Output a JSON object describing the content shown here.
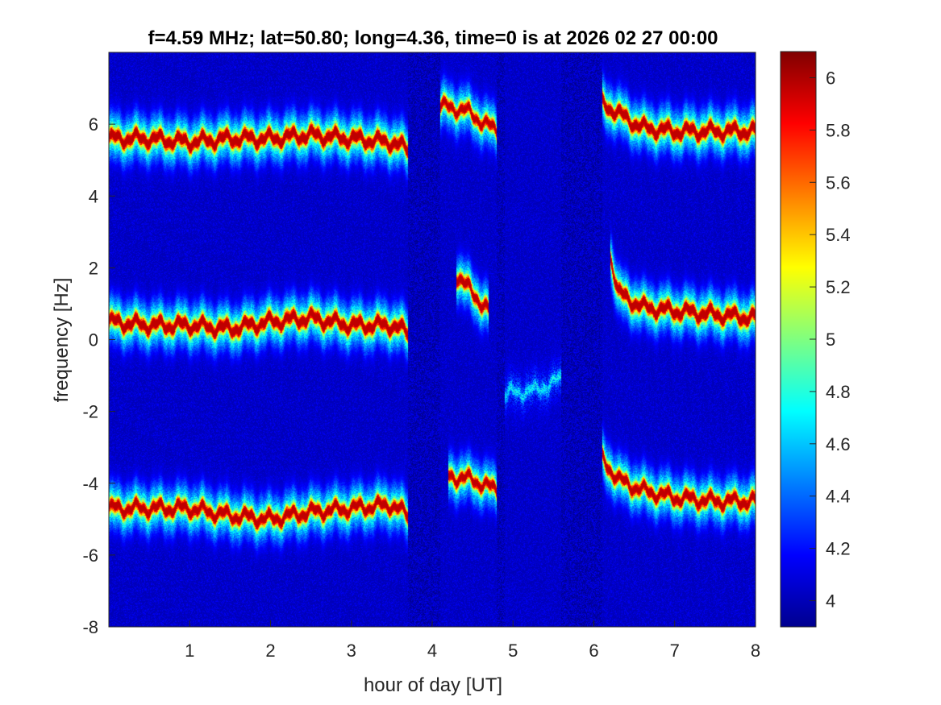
{
  "chart_data": {
    "type": "heatmap",
    "title": "f=4.59 MHz;  lat=50.80; long=4.36, time=0 is at 2026 02 27 00:00",
    "xlabel": "hour of day [UT]",
    "ylabel": "frequency [Hz]",
    "xlim": [
      0,
      8
    ],
    "ylim": [
      -8,
      8
    ],
    "x_ticks": [
      "1",
      "2",
      "3",
      "4",
      "5",
      "6",
      "7",
      "8"
    ],
    "y_ticks": [
      "-8",
      "-6",
      "-4",
      "-2",
      "0",
      "2",
      "4",
      "6"
    ],
    "colormap": "jet",
    "clim": [
      3.9,
      6.1
    ],
    "colorbar_ticks": [
      "4",
      "4.2",
      "4.4",
      "4.6",
      "4.8",
      "5",
      "5.2",
      "5.4",
      "5.6",
      "5.8",
      "6"
    ],
    "background_level": 4.0,
    "traces": [
      {
        "points": [
          [
            0,
            5.6
          ],
          [
            0.5,
            5.6
          ],
          [
            1,
            5.5
          ],
          [
            1.5,
            5.6
          ],
          [
            2,
            5.6
          ],
          [
            2.5,
            5.7
          ],
          [
            3,
            5.6
          ],
          [
            3.5,
            5.5
          ],
          [
            3.7,
            5.3
          ]
        ],
        "peak": 6.0
      },
      {
        "points": [
          [
            0,
            0.5
          ],
          [
            0.5,
            0.4
          ],
          [
            1,
            0.4
          ],
          [
            1.5,
            0.3
          ],
          [
            2,
            0.5
          ],
          [
            2.5,
            0.6
          ],
          [
            3,
            0.4
          ],
          [
            3.5,
            0.4
          ],
          [
            3.7,
            0.2
          ]
        ],
        "peak": 6.0
      },
      {
        "points": [
          [
            0,
            -4.7
          ],
          [
            0.5,
            -4.7
          ],
          [
            1,
            -4.7
          ],
          [
            1.5,
            -4.9
          ],
          [
            2,
            -5.0
          ],
          [
            2.5,
            -4.8
          ],
          [
            3,
            -4.7
          ],
          [
            3.5,
            -4.6
          ],
          [
            3.7,
            -4.9
          ]
        ],
        "peak": 5.9
      },
      {
        "points": [
          [
            4.1,
            6.5
          ],
          [
            4.4,
            6.4
          ],
          [
            4.6,
            6.1
          ],
          [
            4.8,
            5.8
          ]
        ],
        "peak": 5.8
      },
      {
        "points": [
          [
            4.3,
            1.8
          ],
          [
            4.5,
            1.3
          ],
          [
            4.7,
            0.8
          ]
        ],
        "peak": 5.9
      },
      {
        "points": [
          [
            4.2,
            -3.8
          ],
          [
            4.5,
            -3.9
          ],
          [
            4.8,
            -4.2
          ]
        ],
        "peak": 5.8
      },
      {
        "points": [
          [
            6.1,
            6.6
          ],
          [
            6.3,
            6.3
          ],
          [
            6.6,
            5.9
          ],
          [
            7,
            5.8
          ],
          [
            7.5,
            5.8
          ],
          [
            8,
            5.8
          ]
        ],
        "peak": 6.0
      },
      {
        "points": [
          [
            6.2,
            2.4
          ],
          [
            6.3,
            1.3
          ],
          [
            6.6,
            0.9
          ],
          [
            7,
            0.8
          ],
          [
            7.5,
            0.7
          ],
          [
            8,
            0.6
          ]
        ],
        "peak": 6.0
      },
      {
        "points": [
          [
            6.1,
            -3.3
          ],
          [
            6.3,
            -3.9
          ],
          [
            6.6,
            -4.2
          ],
          [
            7,
            -4.4
          ],
          [
            7.5,
            -4.5
          ],
          [
            8,
            -4.5
          ]
        ],
        "peak": 5.9
      },
      {
        "points": [
          [
            4.9,
            -1.5
          ],
          [
            5.3,
            -1.4
          ],
          [
            5.6,
            -1.1
          ]
        ],
        "peak": 4.5
      }
    ]
  }
}
